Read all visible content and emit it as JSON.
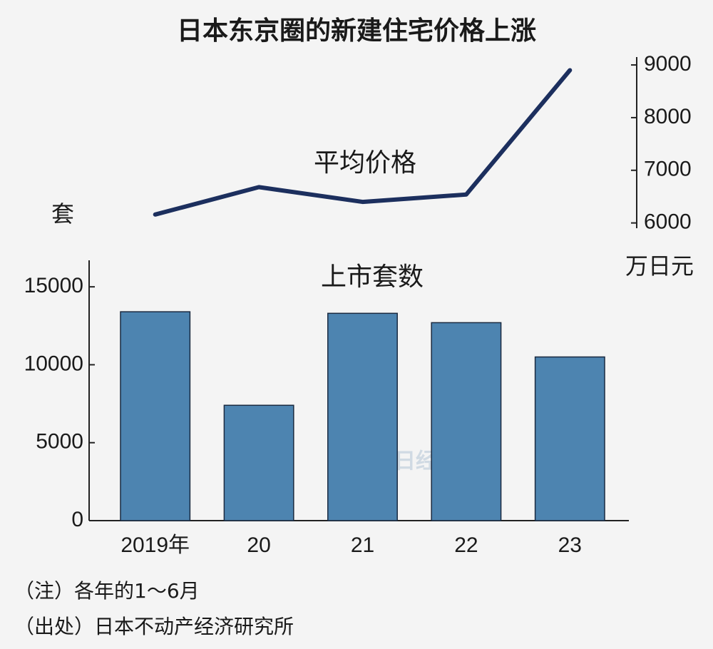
{
  "chart_data": {
    "type": "combo",
    "title": "日本东京圈的新建住宅价格上涨",
    "categories": [
      "2019年",
      "20",
      "21",
      "22",
      "23"
    ],
    "series": [
      {
        "name": "平均价格",
        "type": "line",
        "axis": "y2",
        "color": "#1c2f5e",
        "values": [
          6160,
          6680,
          6400,
          6540,
          8900
        ]
      },
      {
        "name": "上市套数",
        "type": "bar",
        "axis": "y",
        "color": "#4d84b0",
        "values": [
          13400,
          7400,
          13300,
          12700,
          10500
        ]
      }
    ],
    "y_label": "套",
    "y2_label": "万日元",
    "ylim": [
      0,
      16700
    ],
    "yticks": [
      0,
      5000,
      10000,
      15000
    ],
    "y2lim": [
      5900,
      9150
    ],
    "y2ticks": [
      6000,
      7000,
      8000,
      9000
    ],
    "watermark": "日经中文网",
    "notes": [
      "（注）各年的1～6月",
      "（出处）日本不动产经济研究所"
    ]
  }
}
